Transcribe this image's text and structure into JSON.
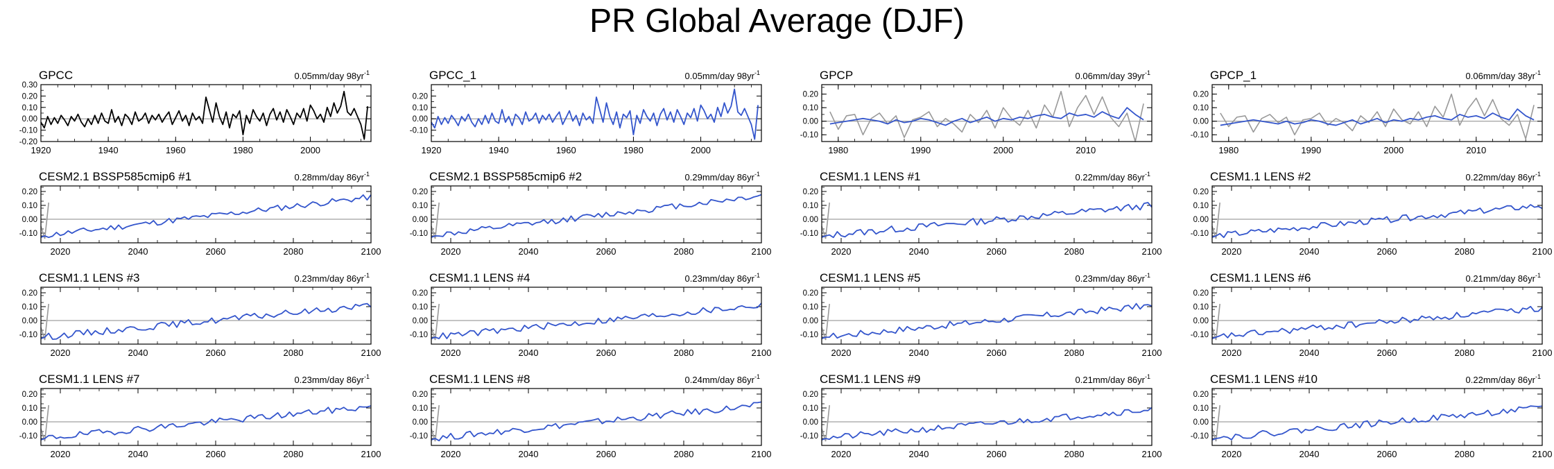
{
  "title": "PR Global Average (DJF)",
  "colors": {
    "observed": "#000000",
    "model": "#3355cc",
    "reference": "#999999",
    "zero_line": "#888888",
    "axis": "#000000"
  },
  "chart_data": [
    {
      "type": "line",
      "label": "GPCC",
      "trend": "0.05mm/day 98yr",
      "trend_main": "0.05mm/day 98yr",
      "trend_sup": "-1",
      "xlim": [
        1920,
        2018
      ],
      "ylim": [
        -0.2,
        0.3
      ],
      "xticks": [
        1920,
        1940,
        1960,
        1980,
        2000
      ],
      "yticks": [
        -0.2,
        -0.1,
        0.0,
        0.1,
        0.2,
        0.3
      ],
      "ytick_labels": [
        "-0.20",
        "-0.10",
        "0.00",
        "0.10",
        "0.20",
        "0.30"
      ],
      "series": [
        {
          "role": "observed",
          "color": "#000000",
          "x_start": 1920,
          "x_step": 1,
          "values": [
            -0.03,
            -0.08,
            0.02,
            -0.05,
            0.01,
            -0.04,
            0.03,
            -0.01,
            -0.06,
            0.02,
            -0.02,
            0.04,
            -0.03,
            -0.07,
            0.0,
            -0.05,
            0.03,
            -0.04,
            0.05,
            -0.02,
            -0.04,
            0.08,
            -0.03,
            0.02,
            -0.06,
            0.04,
            0.01,
            -0.05,
            0.06,
            -0.02,
            0.0,
            0.05,
            -0.04,
            0.03,
            -0.01,
            0.04,
            -0.03,
            0.02,
            0.06,
            -0.05,
            0.01,
            0.07,
            -0.02,
            0.03,
            -0.06,
            0.05,
            -0.01,
            0.02,
            -0.04,
            0.19,
            0.08,
            -0.03,
            0.14,
            0.02,
            -0.05,
            0.06,
            -0.08,
            0.04,
            0.01,
            0.07,
            -0.14,
            0.03,
            -0.04,
            0.08,
            0.02,
            -0.02,
            0.05,
            -0.06,
            0.04,
            0.09,
            -0.01,
            0.06,
            -0.03,
            0.08,
            0.02,
            -0.05,
            0.05,
            0.01,
            0.09,
            -0.02,
            0.12,
            0.07,
            0.0,
            0.04,
            -0.03,
            0.1,
            0.02,
            0.14,
            0.05,
            0.11,
            0.24,
            0.06,
            0.03,
            0.09,
            0.02,
            -0.05,
            -0.18,
            0.11
          ]
        }
      ]
    },
    {
      "type": "line",
      "label": "GPCC_1",
      "trend": "0.05mm/day 98yr",
      "trend_main": "0.05mm/day 98yr",
      "trend_sup": "-1",
      "xlim": [
        1920,
        2018
      ],
      "ylim": [
        -0.2,
        0.3
      ],
      "xticks": [
        1920,
        1940,
        1960,
        1980,
        2000
      ],
      "yticks": [
        -0.1,
        0.0,
        0.1,
        0.2
      ],
      "ytick_labels": [
        "-0.10",
        "0.00",
        "0.10",
        "0.20"
      ],
      "series": [
        {
          "role": "model",
          "color": "#3355cc",
          "x_start": 1920,
          "x_step": 1,
          "values": [
            -0.03,
            -0.08,
            0.02,
            -0.05,
            0.01,
            -0.04,
            0.03,
            -0.01,
            -0.06,
            0.02,
            -0.02,
            0.04,
            -0.03,
            -0.07,
            0.0,
            -0.05,
            0.03,
            -0.04,
            0.05,
            -0.02,
            -0.04,
            0.08,
            -0.03,
            0.02,
            -0.06,
            0.04,
            0.01,
            -0.05,
            0.06,
            -0.02,
            0.0,
            0.05,
            -0.04,
            0.03,
            -0.01,
            0.04,
            -0.03,
            0.02,
            0.06,
            -0.05,
            0.01,
            0.07,
            -0.02,
            0.03,
            -0.06,
            0.05,
            -0.01,
            0.02,
            -0.04,
            0.19,
            0.08,
            -0.03,
            0.14,
            0.02,
            -0.05,
            0.06,
            -0.08,
            0.04,
            0.01,
            0.07,
            -0.14,
            0.03,
            -0.04,
            0.08,
            0.02,
            -0.02,
            0.05,
            -0.06,
            0.04,
            0.09,
            -0.01,
            0.06,
            -0.03,
            0.08,
            0.02,
            -0.05,
            0.05,
            0.01,
            0.09,
            -0.02,
            0.12,
            0.07,
            0.0,
            0.04,
            -0.03,
            0.1,
            0.02,
            0.14,
            0.05,
            0.11,
            0.26,
            0.06,
            0.03,
            0.09,
            0.02,
            -0.05,
            -0.18,
            0.12
          ]
        }
      ]
    },
    {
      "type": "line",
      "label": "GPCP",
      "trend": "0.06mm/day 39yr",
      "trend_main": "0.06mm/day 39yr",
      "trend_sup": "-1",
      "xlim": [
        1978,
        2018
      ],
      "ylim": [
        -0.15,
        0.27
      ],
      "xticks": [
        1980,
        1990,
        2000,
        2010
      ],
      "yticks": [
        -0.1,
        0.0,
        0.1,
        0.2
      ],
      "ytick_labels": [
        "-0.10",
        "0.00",
        "0.10",
        "0.20"
      ],
      "series": [
        {
          "role": "reference",
          "color": "#999999",
          "x_start": 1979,
          "x_step": 1,
          "values": [
            0.07,
            -0.06,
            0.04,
            0.05,
            -0.1,
            0.02,
            0.06,
            -0.02,
            0.04,
            -0.12,
            0.01,
            0.03,
            0.07,
            -0.04,
            0.02,
            -0.02,
            -0.08,
            0.05,
            -0.01,
            0.08,
            -0.05,
            0.1,
            0.02,
            -0.03,
            0.08,
            -0.05,
            0.12,
            0.03,
            0.22,
            -0.04,
            0.1,
            0.19,
            0.05,
            0.18,
            0.03,
            -0.04,
            0.06,
            -0.15,
            0.13
          ]
        },
        {
          "role": "model",
          "color": "#3355cc",
          "x_start": 1979,
          "x_step": 1,
          "values": [
            -0.02,
            -0.01,
            0.0,
            0.01,
            0.02,
            0.01,
            0.0,
            -0.02,
            0.01,
            -0.01,
            0.0,
            0.02,
            0.01,
            -0.01,
            -0.03,
            0.0,
            0.02,
            -0.01,
            0.01,
            0.03,
            0.0,
            0.02,
            0.01,
            0.03,
            0.02,
            0.04,
            0.05,
            0.03,
            0.02,
            0.06,
            0.04,
            0.05,
            0.03,
            0.07,
            0.04,
            0.02,
            0.1,
            0.05,
            0.01
          ]
        }
      ]
    },
    {
      "type": "line",
      "label": "GPCP_1",
      "trend": "0.06mm/day 38yr",
      "trend_main": "0.06mm/day 38yr",
      "trend_sup": "-1",
      "xlim": [
        1978,
        2018
      ],
      "ylim": [
        -0.15,
        0.27
      ],
      "xticks": [
        1980,
        1990,
        2000,
        2010
      ],
      "yticks": [
        -0.1,
        0.0,
        0.1,
        0.2
      ],
      "ytick_labels": [
        "-0.10",
        "0.00",
        "0.10",
        "0.20"
      ],
      "series": [
        {
          "role": "reference",
          "color": "#999999",
          "x_start": 1979,
          "x_step": 1,
          "values": [
            0.06,
            -0.04,
            0.03,
            0.04,
            -0.08,
            0.02,
            0.05,
            -0.01,
            0.03,
            -0.1,
            0.01,
            0.02,
            0.06,
            -0.03,
            0.02,
            -0.01,
            -0.07,
            0.04,
            -0.01,
            0.07,
            -0.04,
            0.09,
            0.01,
            -0.02,
            0.07,
            -0.04,
            0.11,
            0.03,
            0.2,
            -0.03,
            0.09,
            0.17,
            0.04,
            0.16,
            0.02,
            -0.03,
            0.05,
            -0.13,
            0.12
          ]
        },
        {
          "role": "model",
          "color": "#3355cc",
          "x_start": 1979,
          "x_step": 1,
          "values": [
            -0.03,
            -0.02,
            -0.01,
            0.0,
            0.01,
            0.0,
            -0.01,
            -0.02,
            0.0,
            -0.02,
            -0.01,
            0.01,
            0.0,
            -0.02,
            -0.03,
            -0.01,
            0.01,
            -0.02,
            0.0,
            0.02,
            -0.01,
            0.01,
            0.0,
            0.02,
            0.01,
            0.03,
            0.04,
            0.02,
            0.01,
            0.05,
            0.03,
            0.04,
            0.02,
            0.06,
            0.03,
            0.01,
            0.09,
            0.04,
            0.01
          ]
        }
      ]
    },
    {
      "type": "line",
      "label": "CESM2.1 BSSP585cmip6 #1",
      "trend": "0.28mm/day 86yr",
      "trend_main": "0.28mm/day 86yr",
      "trend_sup": "-1",
      "seed": 11,
      "slope": 0.28,
      "noise": 0.022,
      "end_offset": 0.0
    },
    {
      "type": "line",
      "label": "CESM2.1 BSSP585cmip6 #2",
      "trend": "0.29mm/day 86yr",
      "trend_main": "0.29mm/day 86yr",
      "trend_sup": "-1",
      "seed": 12,
      "slope": 0.29,
      "noise": 0.022,
      "end_offset": 0.0
    },
    {
      "type": "line",
      "label": "CESM1.1 LENS #1",
      "trend": "0.22mm/day 86yr",
      "trend_main": "0.22mm/day 86yr",
      "trend_sup": "-1",
      "seed": 13,
      "slope": 0.22,
      "noise": 0.025,
      "end_offset": -0.01
    },
    {
      "type": "line",
      "label": "CESM1.1 LENS #2",
      "trend": "0.22mm/day 86yr",
      "trend_main": "0.22mm/day 86yr",
      "trend_sup": "-1",
      "seed": 14,
      "slope": 0.22,
      "noise": 0.022,
      "end_offset": -0.01
    },
    {
      "type": "line",
      "label": "CESM1.1 LENS #3",
      "trend": "0.23mm/day 86yr",
      "trend_main": "0.23mm/day 86yr",
      "trend_sup": "-1",
      "seed": 15,
      "slope": 0.23,
      "noise": 0.024,
      "end_offset": 0.01
    },
    {
      "type": "line",
      "label": "CESM1.1 LENS #4",
      "trend": "0.23mm/day 86yr",
      "trend_main": "0.23mm/day 86yr",
      "trend_sup": "-1",
      "seed": 16,
      "slope": 0.23,
      "noise": 0.024,
      "end_offset": 0.0
    },
    {
      "type": "line",
      "label": "CESM1.1 LENS #5",
      "trend": "0.23mm/day 86yr",
      "trend_main": "0.23mm/day 86yr",
      "trend_sup": "-1",
      "seed": 17,
      "slope": 0.23,
      "noise": 0.024,
      "end_offset": -0.01
    },
    {
      "type": "line",
      "label": "CESM1.1 LENS #6",
      "trend": "0.21mm/day 86yr",
      "trend_main": "0.21mm/day 86yr",
      "trend_sup": "-1",
      "seed": 18,
      "slope": 0.21,
      "noise": 0.024,
      "end_offset": 0.01
    },
    {
      "type": "line",
      "label": "CESM1.1 LENS #7",
      "trend": "0.23mm/day 86yr",
      "trend_main": "0.23mm/day 86yr",
      "trend_sup": "-1",
      "seed": 19,
      "slope": 0.23,
      "noise": 0.024,
      "end_offset": 0.02
    },
    {
      "type": "line",
      "label": "CESM1.1 LENS #8",
      "trend": "0.24mm/day 86yr",
      "trend_main": "0.24mm/day 86yr",
      "trend_sup": "-1",
      "seed": 20,
      "slope": 0.24,
      "noise": 0.024,
      "end_offset": 0.0
    },
    {
      "type": "line",
      "label": "CESM1.1 LENS #9",
      "trend": "0.21mm/day 86yr",
      "trend_main": "0.21mm/day 86yr",
      "trend_sup": "-1",
      "seed": 21,
      "slope": 0.21,
      "noise": 0.023,
      "end_offset": 0.0
    },
    {
      "type": "line",
      "label": "CESM1.1 LENS #10",
      "trend": "0.22mm/day 86yr",
      "trend_main": "0.22mm/day 86yr",
      "trend_sup": "-1",
      "seed": 22,
      "slope": 0.22,
      "noise": 0.023,
      "end_offset": 0.01
    }
  ],
  "model_panels_common": {
    "xlim": [
      2015,
      2100
    ],
    "ylim": [
      -0.17,
      0.24
    ],
    "xticks": [
      2020,
      2040,
      2060,
      2080,
      2100
    ],
    "yticks": [
      -0.1,
      0.0,
      0.1,
      0.2
    ],
    "ytick_labels": [
      "-0.10",
      "0.00",
      "0.10",
      "0.20"
    ],
    "reference_segment": {
      "x": [
        2015,
        2016,
        2017
      ],
      "y": [
        -0.05,
        -0.14,
        0.12
      ],
      "color": "#999999"
    }
  }
}
